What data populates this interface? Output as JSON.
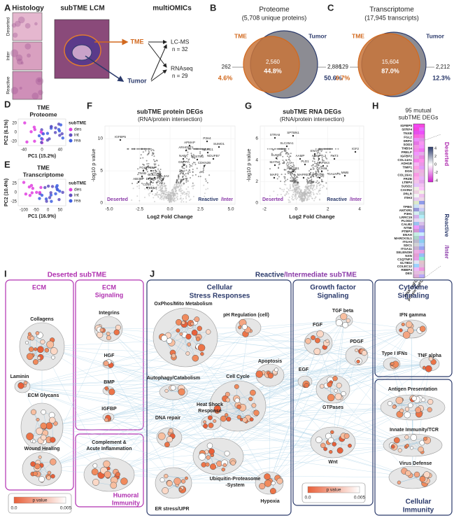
{
  "A": {
    "label": "A",
    "histology": "Histology",
    "regions": [
      "Deserted",
      "Inter",
      "Reactive"
    ],
    "lcm": "subTME LCM",
    "omics": "multiOMICs",
    "tme": "TME",
    "tumor": "Tumor",
    "lcms": "LC-MS",
    "lcms_n": "n = 32",
    "rnaseq": "RNAseq",
    "rnaseq_n": "n = 29"
  },
  "B": {
    "label": "B",
    "title": "Proteome",
    "subtitle": "(5,708 unique proteins)",
    "left_name": "TME",
    "right_name": "Tumor",
    "left_count": "262",
    "right_count": "2,886",
    "overlap_count": "2,560",
    "overlap_pct": "44.8%",
    "left_pct": "4.6%",
    "right_pct": "50.6%"
  },
  "C": {
    "label": "C",
    "title": "Transcriptome",
    "subtitle": "(17,945 transcripts)",
    "left_name": "TME",
    "right_name": "Tumor",
    "left_count": "129",
    "right_count": "2,212",
    "overlap_count": "15,604",
    "overlap_pct": "87.0%",
    "left_pct": "0.7%",
    "right_pct": "12.3%"
  },
  "D": {
    "label": "D",
    "title": [
      "TME",
      "Proteome"
    ],
    "ylabel": "PC2 (6.1%)",
    "xlabel": "PC1 (15.2%)",
    "xticks": [
      "-40",
      "0",
      "40"
    ],
    "yticks": [
      "-20",
      "0",
      "20"
    ],
    "legend_title": "subTME",
    "legend": [
      "des",
      "int",
      "rea"
    ]
  },
  "E": {
    "label": "E",
    "title": [
      "TME",
      "Transcriptome"
    ],
    "ylabel": "PC2 (10.4%)",
    "xlabel": "PC1 (16.9%)",
    "xticks": [
      "-100",
      "-50",
      "0",
      "50"
    ],
    "yticks": [
      "-25",
      "0",
      "25"
    ],
    "legend_title": "subTME",
    "legend": [
      "des",
      "int",
      "rea"
    ]
  },
  "F": {
    "label": "F",
    "title": "subTME protein DEGs",
    "subtitle": "(RNA/protein intersection)",
    "ylabel": "-log10 p value",
    "xlabel": "Log2 Fold Change",
    "xticks": [
      "-5.0",
      "-2.5",
      "0.0",
      "2.5",
      "5.0"
    ],
    "yticks": [
      "0",
      "5",
      "10"
    ],
    "left_note": "Deserted",
    "right_note_a": "Reactive",
    "right_note_b": "/Inter",
    "genes": [
      "IGFBP5",
      "P3H4",
      "APMAP",
      "SUMO1",
      "ARHGEF1",
      "AGRG1",
      "NAPA",
      "SQSTM1",
      "NDUFB7",
      "GMPPA",
      "CDKN2B",
      "FGL2",
      "PRELP",
      "TNXB",
      "COL14A1",
      "COL4A2",
      "ABI3BP",
      "DPEP2",
      "CD34",
      "PDE5A"
    ]
  },
  "G": {
    "label": "G",
    "title": "subTME RNA DEGs",
    "subtitle": "(RNA/protein intersection)",
    "ylabel": "-log10 p value",
    "xlabel": "Log2 Fold Change",
    "xticks": [
      "-2",
      "0",
      "2",
      "4"
    ],
    "yticks": [
      "0",
      "2",
      "4",
      "6"
    ],
    "left_note": "Deserted",
    "right_note_a": "Reactive",
    "right_note_b": "/Inter",
    "genes": [
      "STRA6",
      "SPTBN1",
      "SLC29A1",
      "SUSD2",
      "ENAH",
      "IGF2",
      "AAMP",
      "ANGPTL2",
      "FKT3",
      "MATN2",
      "PLD1",
      "MAP4K4",
      "DCHS1",
      "PHLDB1",
      "MAP2",
      "MAPRE3",
      "ITGA5",
      "GALNT5",
      "MMB"
    ]
  },
  "H": {
    "label": "H",
    "title": [
      "95 mutual",
      "subTME DEGs"
    ],
    "genes_top": [
      "IGFBP5",
      "SFRP4",
      "TNXB",
      "FGL2",
      "SRPX",
      "SOD3",
      "THBS4",
      "PRELP",
      "IGFBP2",
      "COL14A1",
      "ADH1B",
      "TIMP1",
      "DGN",
      "COL16A1",
      "FRZB",
      "LTBP4",
      "SUSD2",
      "CAVIN2",
      "PRLR",
      "ITIH3"
    ],
    "genes_bottom": [
      "TPBG",
      "ANTXR1",
      "P3H1",
      "LRRC15",
      "PLOD2",
      "CALB2",
      "NT5E",
      "PTBP3",
      "ENAH",
      "MARCKSL1",
      "ITGA5",
      "SDC1",
      "ITGA11",
      "SELENOM",
      "NXN",
      "C1QTNF3",
      "GLT8D2",
      "COLEC12",
      "RBBP4",
      "DES"
    ],
    "colorbar_ticks": [
      "4",
      "2",
      "0",
      "-2",
      "-4"
    ],
    "top_note": "Deserted",
    "bottom_note_a": "Reactive",
    "bottom_note_b": "/Inter",
    "columns": [
      "RNA logFC",
      "protein logFC"
    ]
  },
  "I": {
    "label": "I",
    "header": "Deserted subTME",
    "ecm": "ECM",
    "ecm_signaling": [
      "ECM",
      "Signaling"
    ],
    "humoral": [
      "Humoral",
      "Immunity"
    ],
    "nodes": [
      "Collagens",
      "Laminin",
      "ECM Glycans",
      "Wound Healing",
      "Integrins",
      "HGF",
      "BMP",
      "IGFBP"
    ],
    "complement": [
      "Complement &",
      "Acute Inflammation"
    ],
    "legend": {
      "title": "p value",
      "min": "0.0",
      "max": "0.005"
    }
  },
  "J": {
    "label": "J",
    "header_a": "Reactive",
    "header_b": "/Intermediate subTME",
    "stress": [
      "Cellular",
      "Stress Responses"
    ],
    "growth": [
      "Growth factor",
      "Signaling"
    ],
    "cytokine": [
      "Cytokine",
      "Signaling"
    ],
    "immunity": [
      "Cellular",
      "Immunity"
    ],
    "nodes": [
      "OxPhos/Mito Metabolism",
      "pH Regulation (cell)",
      "Apoptosis",
      "Autophagy/Catabolism",
      "Cell Cycle",
      "DNA repair",
      "ER stress/UPR",
      "Hypoxia",
      "TGF beta",
      "FGF",
      "PDGF",
      "EGF",
      "GTPases",
      "Wnt",
      "IFN gamma",
      "Type I IFNs",
      "TNF alpha",
      "Antigen Presentation",
      "Innate Immunity/TCR",
      "Virus Defense"
    ],
    "heat_shock": [
      "Heat Shock",
      "Response"
    ],
    "ubiquitin": [
      "Ubiquitin-Proteasome",
      "-System"
    ],
    "legend": {
      "title": "p value",
      "min": "0.0",
      "max": "0.005"
    }
  }
}
